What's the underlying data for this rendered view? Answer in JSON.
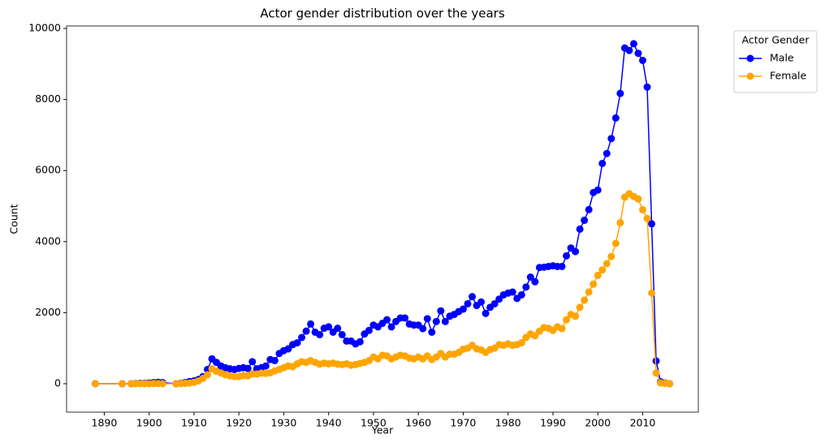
{
  "chart_data": {
    "type": "line",
    "title": "Actor gender distribution over the years",
    "x_label": "Year",
    "y_label": "Count",
    "legend_title": "Actor Gender",
    "legend": "outside upper right",
    "x": [
      1888,
      1894,
      1896,
      1897,
      1898,
      1899,
      1900,
      1901,
      1902,
      1903,
      1906,
      1907,
      1908,
      1909,
      1910,
      1911,
      1912,
      1913,
      1914,
      1915,
      1916,
      1917,
      1918,
      1919,
      1920,
      1921,
      1922,
      1923,
      1924,
      1925,
      1926,
      1927,
      1928,
      1929,
      1930,
      1931,
      1932,
      1933,
      1934,
      1935,
      1936,
      1937,
      1938,
      1939,
      1940,
      1941,
      1942,
      1943,
      1944,
      1945,
      1946,
      1947,
      1948,
      1949,
      1950,
      1951,
      1952,
      1953,
      1954,
      1955,
      1956,
      1957,
      1958,
      1959,
      1960,
      1961,
      1962,
      1963,
      1964,
      1965,
      1966,
      1967,
      1968,
      1969,
      1970,
      1971,
      1972,
      1973,
      1974,
      1975,
      1976,
      1977,
      1978,
      1979,
      1980,
      1981,
      1982,
      1983,
      1984,
      1985,
      1986,
      1987,
      1988,
      1989,
      1990,
      1991,
      1992,
      1993,
      1994,
      1995,
      1996,
      1997,
      1998,
      1999,
      2000,
      2001,
      2002,
      2003,
      2004,
      2005,
      2006,
      2007,
      2008,
      2009,
      2010,
      2011,
      2012,
      2013,
      2014,
      2015,
      2016
    ],
    "series": [
      {
        "name": "Male",
        "color": "#0000ff",
        "values": [
          0,
          0,
          0,
          5,
          10,
          10,
          20,
          30,
          40,
          30,
          0,
          10,
          30,
          60,
          80,
          120,
          200,
          400,
          700,
          600,
          500,
          450,
          420,
          400,
          430,
          450,
          430,
          620,
          420,
          450,
          500,
          680,
          650,
          850,
          930,
          980,
          1100,
          1150,
          1300,
          1480,
          1680,
          1450,
          1380,
          1560,
          1600,
          1450,
          1560,
          1380,
          1200,
          1200,
          1120,
          1180,
          1400,
          1500,
          1650,
          1600,
          1700,
          1800,
          1600,
          1750,
          1850,
          1850,
          1680,
          1650,
          1650,
          1550,
          1830,
          1450,
          1750,
          2050,
          1750,
          1900,
          1950,
          2030,
          2100,
          2250,
          2450,
          2200,
          2300,
          1980,
          2150,
          2250,
          2380,
          2500,
          2550,
          2580,
          2400,
          2500,
          2720,
          3000,
          2870,
          3270,
          3280,
          3300,
          3320,
          3300,
          3300,
          3600,
          3820,
          3720,
          4350,
          4600,
          4900,
          5380,
          5450,
          6200,
          6480,
          6900,
          7480,
          8170,
          9450,
          9380,
          9570,
          9300,
          9100,
          8350,
          4500,
          640,
          50,
          20,
          0
        ]
      },
      {
        "name": "Female",
        "color": "#ffa500",
        "values": [
          0,
          0,
          0,
          0,
          0,
          0,
          0,
          5,
          5,
          0,
          0,
          5,
          10,
          20,
          40,
          80,
          150,
          250,
          420,
          350,
          300,
          250,
          220,
          200,
          200,
          230,
          220,
          280,
          270,
          300,
          290,
          310,
          360,
          400,
          450,
          500,
          480,
          560,
          620,
          600,
          650,
          600,
          550,
          580,
          560,
          580,
          550,
          540,
          560,
          520,
          540,
          570,
          600,
          650,
          750,
          700,
          800,
          780,
          700,
          750,
          800,
          780,
          720,
          700,
          750,
          700,
          780,
          680,
          750,
          850,
          750,
          830,
          830,
          880,
          970,
          1000,
          1080,
          980,
          950,
          880,
          960,
          1000,
          1100,
          1080,
          1120,
          1080,
          1100,
          1150,
          1300,
          1400,
          1350,
          1480,
          1580,
          1560,
          1500,
          1600,
          1550,
          1800,
          1950,
          1900,
          2150,
          2350,
          2580,
          2800,
          3050,
          3200,
          3380,
          3580,
          3950,
          4530,
          5250,
          5350,
          5270,
          5200,
          4900,
          4650,
          2550,
          300,
          20,
          10,
          0
        ]
      }
    ],
    "xlim": [
      1881.6,
      2022.4
    ],
    "ylim": [
      -800,
      10070
    ],
    "xticks": [
      1890,
      1900,
      1910,
      1920,
      1930,
      1940,
      1950,
      1960,
      1970,
      1980,
      1990,
      2000,
      2010
    ],
    "yticks": [
      0,
      2000,
      4000,
      6000,
      8000,
      10000
    ]
  }
}
